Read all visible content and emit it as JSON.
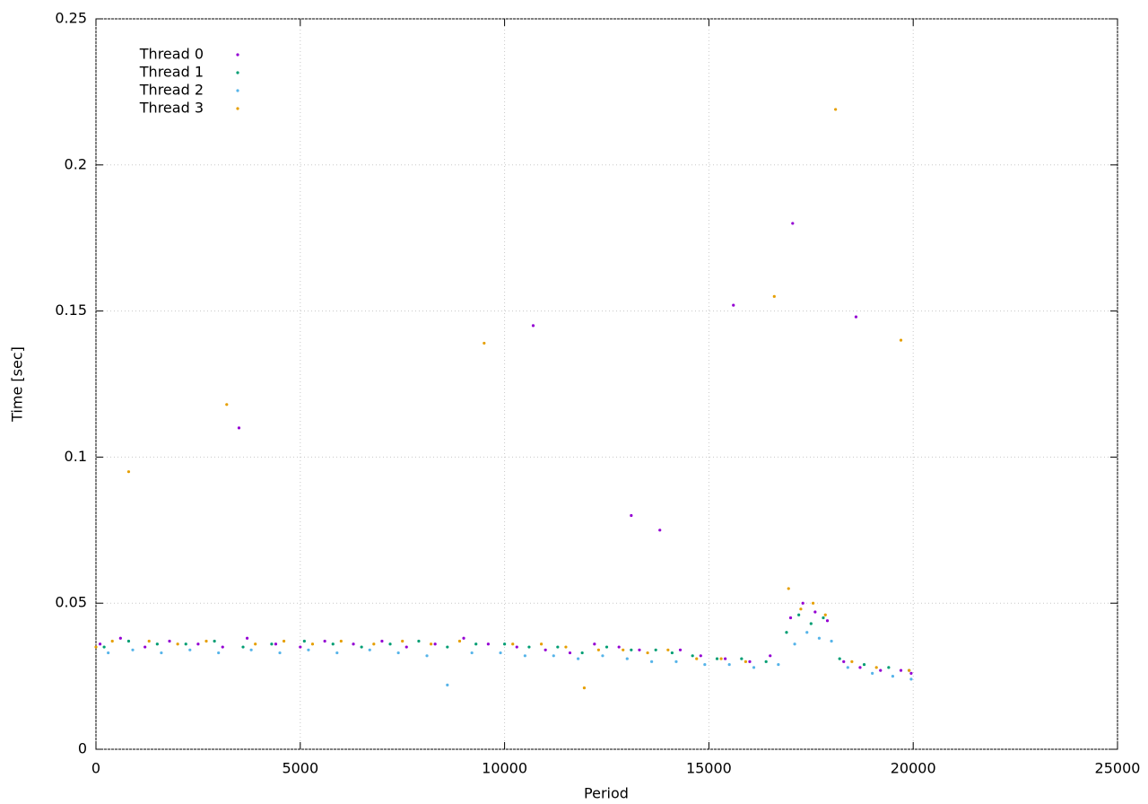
{
  "chart_data": {
    "type": "scatter",
    "xlabel": "Period",
    "ylabel": "Time [sec]",
    "xlim": [
      0,
      25000
    ],
    "xticks": [
      0,
      5000,
      10000,
      15000,
      20000,
      25000
    ],
    "ylim": [
      0,
      0.25
    ],
    "yticks": [
      0,
      0.05,
      0.1,
      0.15,
      0.2,
      0.25
    ],
    "grid": true,
    "legend": "top-left",
    "series": [
      {
        "name": "Thread 0",
        "color": "#9400d3",
        "x": [
          100,
          600,
          1200,
          1800,
          2500,
          3100,
          3500,
          3700,
          4400,
          5000,
          5600,
          6300,
          7000,
          7600,
          8300,
          9000,
          9600,
          10300,
          10700,
          11000,
          11600,
          12200,
          12800,
          13100,
          13300,
          13800,
          14300,
          14800,
          15400,
          15600,
          16000,
          16500,
          17000,
          17050,
          17300,
          17600,
          17900,
          18300,
          18600,
          18700,
          19200,
          19700,
          19950
        ],
        "values": [
          0.036,
          0.038,
          0.035,
          0.037,
          0.036,
          0.035,
          0.11,
          0.038,
          0.036,
          0.035,
          0.037,
          0.036,
          0.037,
          0.035,
          0.036,
          0.038,
          0.036,
          0.035,
          0.145,
          0.034,
          0.033,
          0.036,
          0.035,
          0.08,
          0.034,
          0.075,
          0.034,
          0.032,
          0.031,
          0.152,
          0.03,
          0.032,
          0.045,
          0.18,
          0.05,
          0.047,
          0.044,
          0.03,
          0.148,
          0.028,
          0.027,
          0.027,
          0.026
        ]
      },
      {
        "name": "Thread 1",
        "color": "#009e73",
        "x": [
          200,
          800,
          1500,
          2200,
          2900,
          3600,
          4300,
          5100,
          5800,
          6500,
          7200,
          7900,
          8600,
          9300,
          10000,
          10600,
          11300,
          11900,
          12500,
          13100,
          13700,
          14100,
          14600,
          15200,
          15800,
          16400,
          16900,
          17200,
          17500,
          17800,
          18200,
          18800,
          19400,
          19900
        ],
        "values": [
          0.035,
          0.037,
          0.036,
          0.036,
          0.037,
          0.035,
          0.036,
          0.037,
          0.036,
          0.035,
          0.036,
          0.037,
          0.035,
          0.036,
          0.036,
          0.035,
          0.035,
          0.033,
          0.035,
          0.034,
          0.034,
          0.033,
          0.032,
          0.031,
          0.031,
          0.03,
          0.04,
          0.046,
          0.043,
          0.045,
          0.031,
          0.029,
          0.028,
          0.027
        ]
      },
      {
        "name": "Thread 2",
        "color": "#56b4e9",
        "x": [
          300,
          900,
          1600,
          2300,
          3000,
          3800,
          4500,
          5200,
          5900,
          6700,
          7400,
          8100,
          8600,
          9200,
          9900,
          10500,
          11200,
          11800,
          12400,
          13000,
          13600,
          14200,
          14900,
          15500,
          16100,
          16700,
          17100,
          17400,
          17700,
          18000,
          18400,
          19000,
          19500,
          19950
        ],
        "values": [
          0.033,
          0.034,
          0.033,
          0.034,
          0.033,
          0.034,
          0.033,
          0.034,
          0.033,
          0.034,
          0.033,
          0.032,
          0.022,
          0.033,
          0.033,
          0.032,
          0.032,
          0.031,
          0.032,
          0.031,
          0.03,
          0.03,
          0.029,
          0.029,
          0.028,
          0.029,
          0.036,
          0.04,
          0.038,
          0.037,
          0.028,
          0.026,
          0.025,
          0.024
        ]
      },
      {
        "name": "Thread 3",
        "color": "#e69f00",
        "x": [
          0,
          400,
          800,
          1300,
          2000,
          2700,
          3200,
          3900,
          4600,
          5300,
          6000,
          6800,
          7500,
          8200,
          8900,
          9500,
          10200,
          10900,
          11500,
          11950,
          12300,
          12900,
          13500,
          14000,
          14700,
          15300,
          15900,
          16600,
          16950,
          17250,
          17550,
          17850,
          18100,
          18500,
          19100,
          19700,
          19900
        ],
        "values": [
          0.035,
          0.037,
          0.095,
          0.037,
          0.036,
          0.037,
          0.118,
          0.036,
          0.037,
          0.036,
          0.037,
          0.036,
          0.037,
          0.036,
          0.037,
          0.139,
          0.036,
          0.036,
          0.035,
          0.021,
          0.034,
          0.034,
          0.033,
          0.034,
          0.031,
          0.031,
          0.03,
          0.155,
          0.055,
          0.048,
          0.05,
          0.046,
          0.219,
          0.03,
          0.028,
          0.14,
          0.027
        ]
      }
    ]
  }
}
